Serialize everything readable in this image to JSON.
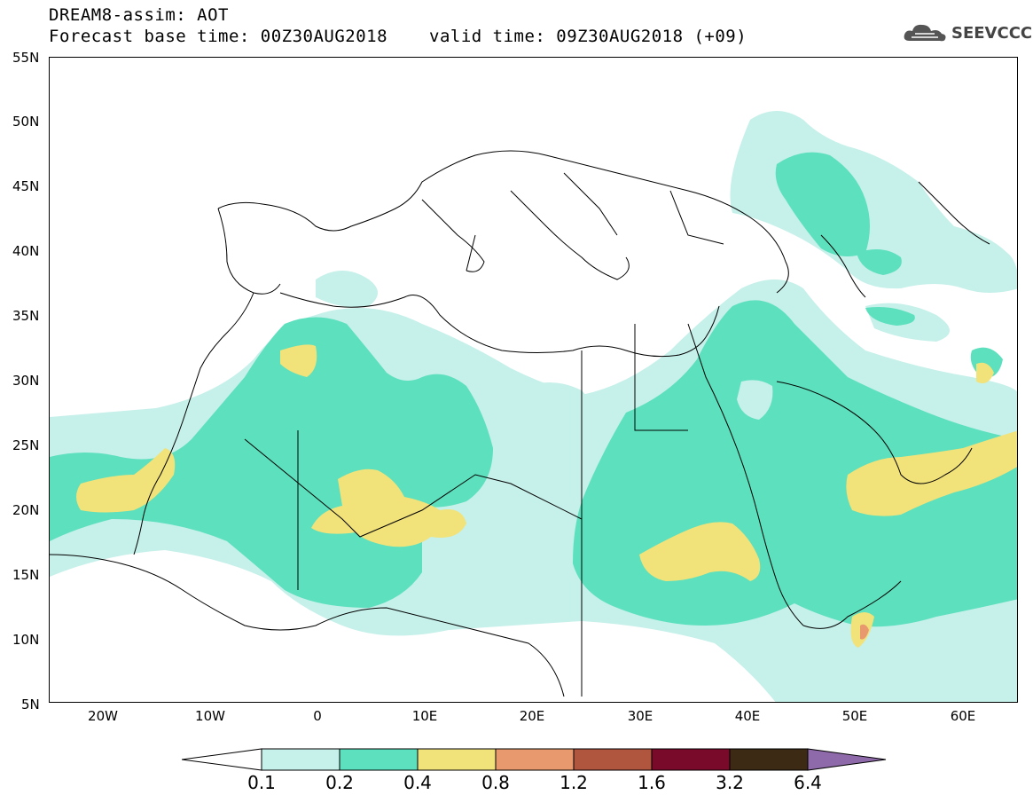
{
  "header": {
    "title_line1": "DREAM8-assim: AOT",
    "title_line2": "Forecast base time: 00Z30AUG2018",
    "valid_time": "valid time: 09Z30AUG2018 (+09)",
    "logo_text": "SEEVCCC"
  },
  "map": {
    "lat_labels": [
      "55N",
      "50N",
      "45N",
      "40N",
      "35N",
      "30N",
      "25N",
      "20N",
      "15N",
      "10N",
      "5N"
    ],
    "lon_labels": [
      "20W",
      "10W",
      "0",
      "10E",
      "20E",
      "30E",
      "40E",
      "50E",
      "60E"
    ],
    "field": "AOT"
  },
  "colorbar": {
    "levels": [
      "0.1",
      "0.2",
      "0.4",
      "0.8",
      "1.2",
      "1.6",
      "3.2",
      "6.4"
    ],
    "colors": [
      "#c6f0ea",
      "#5ce0bd",
      "#f2e27a",
      "#e89a6e",
      "#b0553e",
      "#7a0a2a",
      "#3d2a15",
      "#8e6aaa"
    ]
  }
}
